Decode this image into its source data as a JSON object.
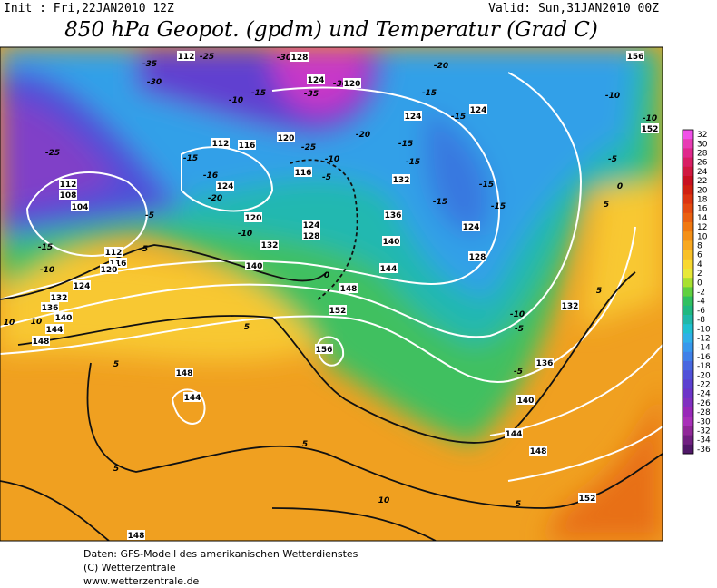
{
  "header": {
    "init": "Init : Fri,22JAN2010 12Z",
    "valid": "Valid: Sun,31JAN2010 00Z",
    "title": "850 hPa Geopot. (gpdm) und Temperatur (Grad C)"
  },
  "colorbar": {
    "values": [
      32,
      30,
      28,
      26,
      24,
      22,
      20,
      18,
      16,
      14,
      12,
      10,
      8,
      6,
      4,
      2,
      0,
      -2,
      -4,
      -6,
      -8,
      -10,
      -12,
      -14,
      -16,
      -18,
      -20,
      -22,
      -24,
      -26,
      -28,
      -30,
      -32,
      -34,
      -36
    ],
    "colors": [
      "#f050e8",
      "#e83cb4",
      "#e0288c",
      "#d81e64",
      "#d01840",
      "#c81020",
      "#d02010",
      "#dc3410",
      "#e44a10",
      "#ea6010",
      "#f07810",
      "#f49018",
      "#f8a820",
      "#f8c028",
      "#f8d830",
      "#e8e838",
      "#a8e030",
      "#60d040",
      "#30c060",
      "#20b880",
      "#20b8a8",
      "#20c0d0",
      "#30b0e8",
      "#3898ec",
      "#4080e8",
      "#4868e0",
      "#5050d8",
      "#5c40d0",
      "#6c34c8",
      "#8030c0",
      "#9828b8",
      "#a830b8",
      "#902898",
      "#702080",
      "#501868"
    ]
  },
  "labels": [
    -35,
    112,
    -25,
    -30,
    128,
    -30,
    124,
    -35,
    -30,
    120,
    -20,
    156,
    -10,
    -15,
    -15,
    124,
    -15,
    124,
    -10,
    -10,
    152,
    -20,
    120,
    -25,
    112,
    116,
    -25,
    -15,
    -10,
    -15,
    -15,
    -5,
    112,
    108,
    -16,
    124,
    116,
    -5,
    132,
    -15,
    -20,
    104,
    -15,
    -15,
    0,
    120,
    124,
    128,
    136,
    -5,
    5,
    -10,
    132,
    124,
    140,
    5,
    112,
    116,
    -15,
    120,
    128,
    -10,
    144,
    140,
    0,
    124,
    148,
    132,
    136,
    132,
    5,
    152,
    -10,
    10,
    140,
    10,
    144,
    5,
    -5,
    148,
    156,
    5,
    136,
    -5,
    148,
    140,
    144,
    5,
    144,
    148,
    5,
    10,
    5,
    152,
    148
  ],
  "footer": {
    "line1": "Daten: GFS-Modell des amerikanischen Wetterdienstes",
    "line2": "(C) Wetterzentrale",
    "line3": "www.wetterzentrale.de"
  }
}
